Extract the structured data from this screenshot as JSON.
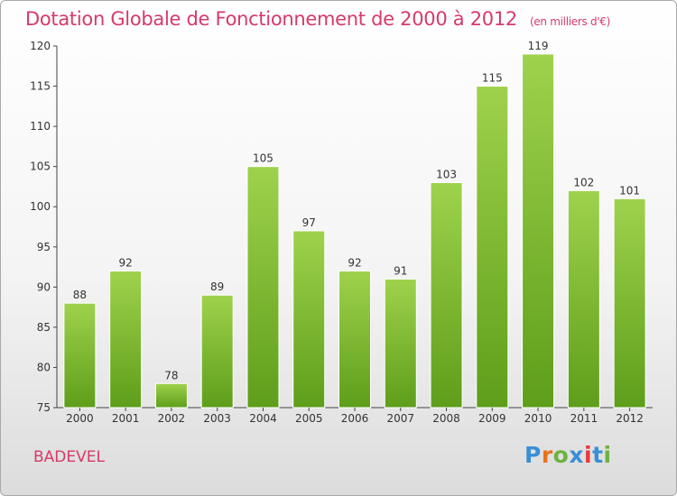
{
  "header": {
    "title": "Dotation Globale de Fonctionnement de 2000 à 2012",
    "unit": "(en milliers d'€)"
  },
  "footer": {
    "commune": "BADEVEL",
    "logo_text": "Proxiti"
  },
  "colors": {
    "title": "#d63a6a",
    "bar_light": "#9fd24c",
    "bar_dark": "#5e9e1a",
    "logo": [
      "#3a8fd6",
      "#e8721c",
      "#6cb33e",
      "#3a8fd6",
      "#e83a3a",
      "#3a8fd6",
      "#6cb33e"
    ]
  },
  "chart_data": {
    "type": "bar",
    "categories": [
      "2000",
      "2001",
      "2002",
      "2003",
      "2004",
      "2005",
      "2006",
      "2007",
      "2008",
      "2009",
      "2010",
      "2011",
      "2012"
    ],
    "values": [
      88,
      92,
      78,
      89,
      105,
      97,
      92,
      91,
      103,
      115,
      119,
      102,
      101
    ],
    "ylim": [
      75,
      120
    ],
    "yticks": [
      75,
      80,
      85,
      90,
      95,
      100,
      105,
      110,
      115,
      120
    ],
    "grid": false
  }
}
